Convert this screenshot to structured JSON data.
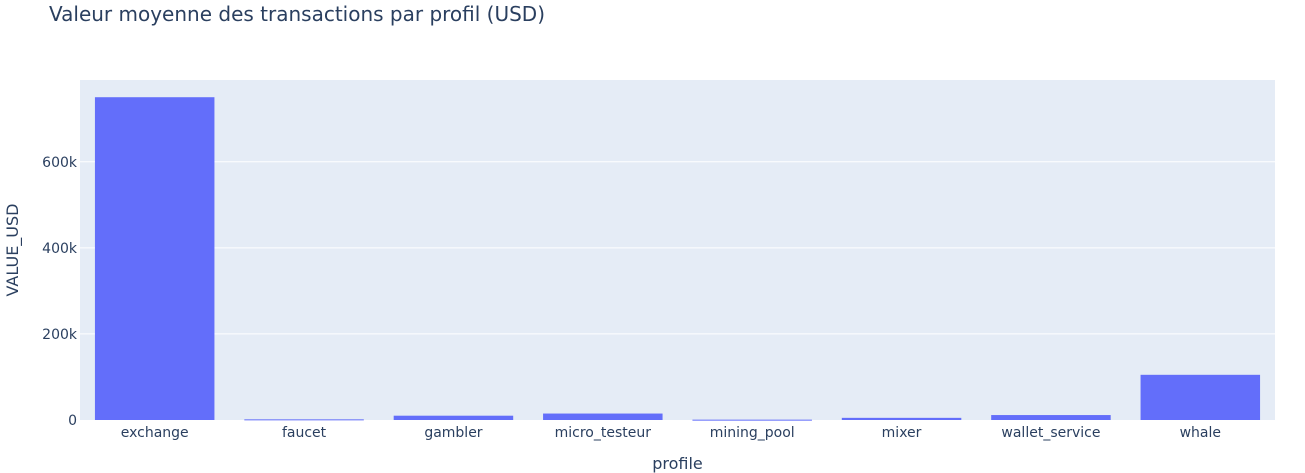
{
  "chart_data": {
    "type": "bar",
    "title": "Valeur moyenne des transactions par profil (USD)",
    "xlabel": "profile",
    "ylabel": "VALUE_USD",
    "categories": [
      "exchange",
      "faucet",
      "gambler",
      "micro_testeur",
      "mining_pool",
      "mixer",
      "wallet_service",
      "whale"
    ],
    "values": [
      750000,
      1500,
      10000,
      15000,
      800,
      5000,
      11500,
      105000
    ],
    "ylim": [
      0,
      790000
    ],
    "yticks": [
      0,
      200000,
      400000,
      600000
    ],
    "ytick_labels": [
      "0",
      "200k",
      "400k",
      "600k"
    ],
    "grid": true,
    "bar_color": "#636efa",
    "plot_bg": "#e5ecf6"
  }
}
